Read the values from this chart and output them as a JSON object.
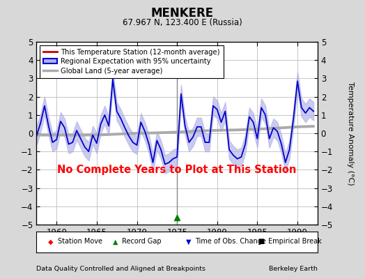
{
  "title": "MENKERE",
  "subtitle": "67.967 N, 123.400 E (Russia)",
  "ylabel": "Temperature Anomaly (°C)",
  "xlabel_left": "Data Quality Controlled and Aligned at Breakpoints",
  "xlabel_right": "Berkeley Earth",
  "no_data_text": "No Complete Years to Plot at This Station",
  "xlim": [
    1957.5,
    1992.5
  ],
  "ylim": [
    -5,
    5
  ],
  "yticks": [
    -5,
    -4,
    -3,
    -2,
    -1,
    0,
    1,
    2,
    3,
    4,
    5
  ],
  "xticks": [
    1960,
    1965,
    1970,
    1975,
    1980,
    1985,
    1990
  ],
  "bg_color": "#d8d8d8",
  "plot_bg_color": "#ffffff",
  "grid_color": "#bbbbbb",
  "regional_line_color": "#0000cc",
  "regional_fill_color": "#b0b0e8",
  "station_line_color": "#cc0000",
  "global_line_color": "#aaaaaa",
  "vline_x": 1975.0,
  "vline_color": "#888888",
  "record_gap_marker_x": 1975.0,
  "obs_change_marker_x": 1975.5,
  "regional_data_x": [
    1957.5,
    1958.0,
    1958.5,
    1959.0,
    1959.5,
    1960.0,
    1960.5,
    1961.0,
    1961.5,
    1962.0,
    1962.5,
    1963.0,
    1963.5,
    1964.0,
    1964.5,
    1965.0,
    1965.5,
    1966.0,
    1966.5,
    1967.0,
    1967.5,
    1968.0,
    1968.5,
    1969.0,
    1969.5,
    1970.0,
    1970.5,
    1971.0,
    1971.5,
    1972.0,
    1972.5,
    1973.0,
    1973.5,
    1974.0,
    1974.5,
    1975.0,
    1975.5,
    1976.0,
    1976.5,
    1977.0,
    1977.5,
    1978.0,
    1978.5,
    1979.0,
    1979.5,
    1980.0,
    1980.5,
    1981.0,
    1981.5,
    1982.0,
    1982.5,
    1983.0,
    1983.5,
    1984.0,
    1984.5,
    1985.0,
    1985.5,
    1986.0,
    1986.5,
    1987.0,
    1987.5,
    1988.0,
    1988.5,
    1989.0,
    1989.5,
    1990.0,
    1990.5,
    1991.0,
    1991.5,
    1992.0
  ],
  "regional_data_y": [
    -0.15,
    0.55,
    1.5,
    0.4,
    -0.5,
    -0.35,
    0.65,
    0.3,
    -0.6,
    -0.5,
    0.15,
    -0.3,
    -0.75,
    -1.0,
    -0.1,
    -0.55,
    0.5,
    1.0,
    0.4,
    2.95,
    1.2,
    0.8,
    0.3,
    -0.15,
    -0.5,
    -0.65,
    0.6,
    0.1,
    -0.6,
    -1.6,
    -0.4,
    -0.9,
    -1.7,
    -1.6,
    -1.4,
    -1.3,
    2.15,
    0.4,
    -0.5,
    -0.2,
    0.35,
    0.35,
    -0.5,
    -0.5,
    1.5,
    1.3,
    0.6,
    1.2,
    -0.9,
    -1.2,
    -1.4,
    -1.3,
    -0.6,
    0.9,
    0.6,
    -0.3,
    1.4,
    1.0,
    -0.3,
    0.3,
    0.1,
    -0.6,
    -1.6,
    -0.9,
    0.8,
    2.85,
    1.4,
    1.1,
    1.4,
    1.2
  ],
  "regional_upper_y": [
    0.35,
    1.05,
    2.0,
    0.9,
    0.0,
    0.15,
    1.15,
    0.8,
    -0.1,
    0.0,
    0.65,
    0.2,
    -0.25,
    -0.5,
    0.4,
    0.0,
    1.0,
    1.5,
    0.9,
    3.45,
    1.7,
    1.3,
    0.8,
    0.35,
    0.0,
    -0.15,
    1.1,
    0.6,
    -0.1,
    -1.1,
    0.1,
    -0.4,
    -1.2,
    -1.1,
    -0.9,
    -0.8,
    2.65,
    0.9,
    0.0,
    0.3,
    0.85,
    0.85,
    0.0,
    0.0,
    2.0,
    1.8,
    1.1,
    1.7,
    -0.4,
    -0.7,
    -0.9,
    -0.8,
    -0.1,
    1.4,
    1.1,
    0.2,
    1.9,
    1.5,
    0.2,
    0.8,
    0.6,
    -0.1,
    -1.1,
    -0.4,
    1.3,
    3.35,
    1.9,
    1.6,
    1.9,
    1.7
  ],
  "regional_lower_y": [
    -0.65,
    0.05,
    1.0,
    -0.1,
    -1.0,
    -0.85,
    0.15,
    -0.2,
    -1.1,
    -1.0,
    -0.35,
    -0.8,
    -1.25,
    -1.5,
    -0.6,
    -1.1,
    0.0,
    0.5,
    -0.1,
    2.45,
    0.7,
    0.3,
    -0.2,
    -0.65,
    -1.0,
    -1.15,
    0.1,
    -0.4,
    -1.1,
    -2.1,
    -0.9,
    -1.4,
    -2.2,
    -2.1,
    -1.9,
    -1.8,
    1.65,
    -0.1,
    -1.0,
    -0.7,
    -0.15,
    -0.15,
    -1.0,
    -1.0,
    1.0,
    0.8,
    0.1,
    0.7,
    -1.4,
    -1.7,
    -1.9,
    -1.8,
    -1.1,
    0.4,
    0.1,
    -0.8,
    0.9,
    0.5,
    -0.8,
    -0.2,
    -0.4,
    -1.1,
    -2.1,
    -1.4,
    0.3,
    2.35,
    0.9,
    0.6,
    0.9,
    0.7
  ],
  "global_data_x": [
    1957.5,
    1960.0,
    1962.5,
    1965.0,
    1967.5,
    1970.0,
    1972.5,
    1975.0,
    1977.5,
    1980.0,
    1982.5,
    1985.0,
    1987.5,
    1990.0,
    1992.0
  ],
  "global_data_y": [
    -0.1,
    -0.1,
    -0.1,
    -0.1,
    -0.05,
    0.0,
    0.02,
    0.06,
    0.12,
    0.16,
    0.18,
    0.22,
    0.28,
    0.35,
    0.38
  ],
  "figsize": [
    5.24,
    4.0
  ],
  "dpi": 100
}
